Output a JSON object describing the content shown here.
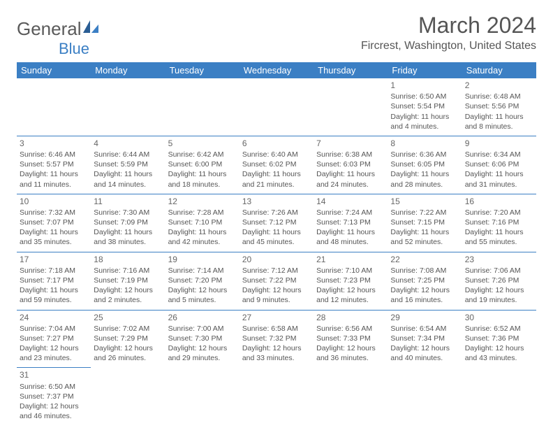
{
  "logo": {
    "text1": "General",
    "text2": "Blue"
  },
  "title": "March 2024",
  "location": "Fircrest, Washington, United States",
  "colors": {
    "header_bg": "#3b7fc4",
    "text": "#555555",
    "border": "#3b7fc4"
  },
  "weekdays": [
    "Sunday",
    "Monday",
    "Tuesday",
    "Wednesday",
    "Thursday",
    "Friday",
    "Saturday"
  ],
  "weeks": [
    [
      null,
      null,
      null,
      null,
      null,
      {
        "d": "1",
        "sr": "Sunrise: 6:50 AM",
        "ss": "Sunset: 5:54 PM",
        "dl1": "Daylight: 11 hours",
        "dl2": "and 4 minutes."
      },
      {
        "d": "2",
        "sr": "Sunrise: 6:48 AM",
        "ss": "Sunset: 5:56 PM",
        "dl1": "Daylight: 11 hours",
        "dl2": "and 8 minutes."
      }
    ],
    [
      {
        "d": "3",
        "sr": "Sunrise: 6:46 AM",
        "ss": "Sunset: 5:57 PM",
        "dl1": "Daylight: 11 hours",
        "dl2": "and 11 minutes."
      },
      {
        "d": "4",
        "sr": "Sunrise: 6:44 AM",
        "ss": "Sunset: 5:59 PM",
        "dl1": "Daylight: 11 hours",
        "dl2": "and 14 minutes."
      },
      {
        "d": "5",
        "sr": "Sunrise: 6:42 AM",
        "ss": "Sunset: 6:00 PM",
        "dl1": "Daylight: 11 hours",
        "dl2": "and 18 minutes."
      },
      {
        "d": "6",
        "sr": "Sunrise: 6:40 AM",
        "ss": "Sunset: 6:02 PM",
        "dl1": "Daylight: 11 hours",
        "dl2": "and 21 minutes."
      },
      {
        "d": "7",
        "sr": "Sunrise: 6:38 AM",
        "ss": "Sunset: 6:03 PM",
        "dl1": "Daylight: 11 hours",
        "dl2": "and 24 minutes."
      },
      {
        "d": "8",
        "sr": "Sunrise: 6:36 AM",
        "ss": "Sunset: 6:05 PM",
        "dl1": "Daylight: 11 hours",
        "dl2": "and 28 minutes."
      },
      {
        "d": "9",
        "sr": "Sunrise: 6:34 AM",
        "ss": "Sunset: 6:06 PM",
        "dl1": "Daylight: 11 hours",
        "dl2": "and 31 minutes."
      }
    ],
    [
      {
        "d": "10",
        "sr": "Sunrise: 7:32 AM",
        "ss": "Sunset: 7:07 PM",
        "dl1": "Daylight: 11 hours",
        "dl2": "and 35 minutes."
      },
      {
        "d": "11",
        "sr": "Sunrise: 7:30 AM",
        "ss": "Sunset: 7:09 PM",
        "dl1": "Daylight: 11 hours",
        "dl2": "and 38 minutes."
      },
      {
        "d": "12",
        "sr": "Sunrise: 7:28 AM",
        "ss": "Sunset: 7:10 PM",
        "dl1": "Daylight: 11 hours",
        "dl2": "and 42 minutes."
      },
      {
        "d": "13",
        "sr": "Sunrise: 7:26 AM",
        "ss": "Sunset: 7:12 PM",
        "dl1": "Daylight: 11 hours",
        "dl2": "and 45 minutes."
      },
      {
        "d": "14",
        "sr": "Sunrise: 7:24 AM",
        "ss": "Sunset: 7:13 PM",
        "dl1": "Daylight: 11 hours",
        "dl2": "and 48 minutes."
      },
      {
        "d": "15",
        "sr": "Sunrise: 7:22 AM",
        "ss": "Sunset: 7:15 PM",
        "dl1": "Daylight: 11 hours",
        "dl2": "and 52 minutes."
      },
      {
        "d": "16",
        "sr": "Sunrise: 7:20 AM",
        "ss": "Sunset: 7:16 PM",
        "dl1": "Daylight: 11 hours",
        "dl2": "and 55 minutes."
      }
    ],
    [
      {
        "d": "17",
        "sr": "Sunrise: 7:18 AM",
        "ss": "Sunset: 7:17 PM",
        "dl1": "Daylight: 11 hours",
        "dl2": "and 59 minutes."
      },
      {
        "d": "18",
        "sr": "Sunrise: 7:16 AM",
        "ss": "Sunset: 7:19 PM",
        "dl1": "Daylight: 12 hours",
        "dl2": "and 2 minutes."
      },
      {
        "d": "19",
        "sr": "Sunrise: 7:14 AM",
        "ss": "Sunset: 7:20 PM",
        "dl1": "Daylight: 12 hours",
        "dl2": "and 5 minutes."
      },
      {
        "d": "20",
        "sr": "Sunrise: 7:12 AM",
        "ss": "Sunset: 7:22 PM",
        "dl1": "Daylight: 12 hours",
        "dl2": "and 9 minutes."
      },
      {
        "d": "21",
        "sr": "Sunrise: 7:10 AM",
        "ss": "Sunset: 7:23 PM",
        "dl1": "Daylight: 12 hours",
        "dl2": "and 12 minutes."
      },
      {
        "d": "22",
        "sr": "Sunrise: 7:08 AM",
        "ss": "Sunset: 7:25 PM",
        "dl1": "Daylight: 12 hours",
        "dl2": "and 16 minutes."
      },
      {
        "d": "23",
        "sr": "Sunrise: 7:06 AM",
        "ss": "Sunset: 7:26 PM",
        "dl1": "Daylight: 12 hours",
        "dl2": "and 19 minutes."
      }
    ],
    [
      {
        "d": "24",
        "sr": "Sunrise: 7:04 AM",
        "ss": "Sunset: 7:27 PM",
        "dl1": "Daylight: 12 hours",
        "dl2": "and 23 minutes."
      },
      {
        "d": "25",
        "sr": "Sunrise: 7:02 AM",
        "ss": "Sunset: 7:29 PM",
        "dl1": "Daylight: 12 hours",
        "dl2": "and 26 minutes."
      },
      {
        "d": "26",
        "sr": "Sunrise: 7:00 AM",
        "ss": "Sunset: 7:30 PM",
        "dl1": "Daylight: 12 hours",
        "dl2": "and 29 minutes."
      },
      {
        "d": "27",
        "sr": "Sunrise: 6:58 AM",
        "ss": "Sunset: 7:32 PM",
        "dl1": "Daylight: 12 hours",
        "dl2": "and 33 minutes."
      },
      {
        "d": "28",
        "sr": "Sunrise: 6:56 AM",
        "ss": "Sunset: 7:33 PM",
        "dl1": "Daylight: 12 hours",
        "dl2": "and 36 minutes."
      },
      {
        "d": "29",
        "sr": "Sunrise: 6:54 AM",
        "ss": "Sunset: 7:34 PM",
        "dl1": "Daylight: 12 hours",
        "dl2": "and 40 minutes."
      },
      {
        "d": "30",
        "sr": "Sunrise: 6:52 AM",
        "ss": "Sunset: 7:36 PM",
        "dl1": "Daylight: 12 hours",
        "dl2": "and 43 minutes."
      }
    ],
    [
      {
        "d": "31",
        "sr": "Sunrise: 6:50 AM",
        "ss": "Sunset: 7:37 PM",
        "dl1": "Daylight: 12 hours",
        "dl2": "and 46 minutes."
      },
      null,
      null,
      null,
      null,
      null,
      null
    ]
  ]
}
